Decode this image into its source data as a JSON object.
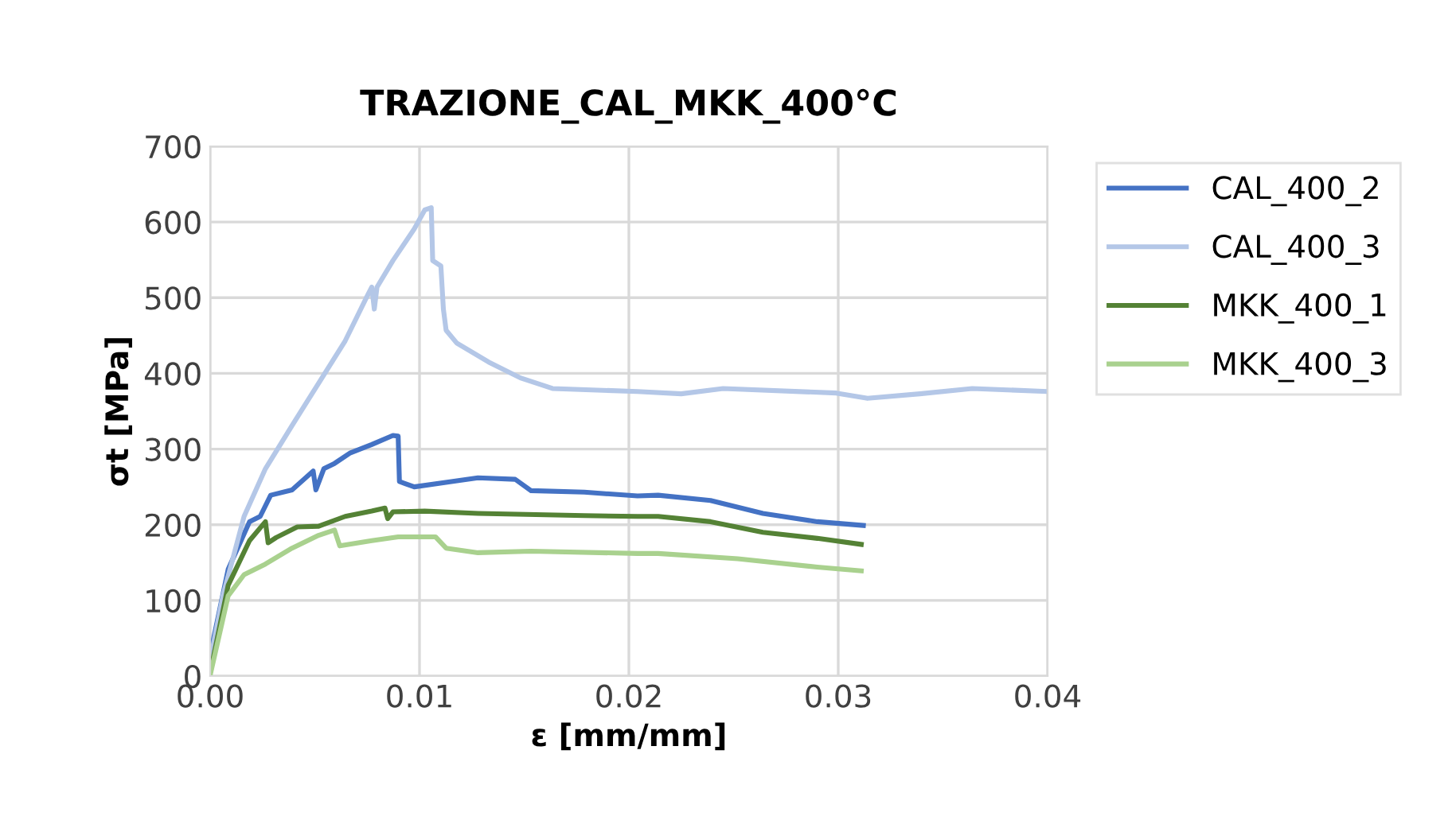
{
  "chart_data": {
    "type": "line",
    "title": "TRAZIONE_CAL_MKK_400°C",
    "xlabel": "ε [mm/mm]",
    "ylabel": "σt [MPa]",
    "xlim": [
      0,
      0.04
    ],
    "xticks": [
      {
        "value": 0,
        "label": "0.00"
      },
      {
        "value": 0.01,
        "label": "0.01"
      },
      {
        "value": 0.02,
        "label": "0.02"
      },
      {
        "value": 0.03,
        "label": "0.03"
      },
      {
        "value": 0.04,
        "label": "0.04"
      }
    ],
    "ylim": [
      0,
      700
    ],
    "yticks": [
      0,
      100,
      200,
      300,
      400,
      500,
      600,
      700
    ],
    "grid": true,
    "legend": "right",
    "marker": "none",
    "line_style": "solid",
    "series": [
      {
        "name": "CAL_400_2",
        "color": "#4472c4",
        "x": [
          0,
          0.00086,
          0.00188,
          0.00239,
          0.00289,
          0.00391,
          0.00492,
          0.00505,
          0.00543,
          0.00594,
          0.0067,
          0.00772,
          0.00873,
          0.00898,
          0.00904,
          0.00975,
          0.01152,
          0.01279,
          0.01457,
          0.01533,
          0.01787,
          0.02041,
          0.0214,
          0.0239,
          0.0264,
          0.029,
          0.0312
        ],
        "values": [
          28,
          141,
          204,
          211,
          239,
          246,
          271,
          246,
          274,
          281,
          295,
          306,
          318,
          317,
          257,
          250,
          257,
          262,
          260,
          245,
          243,
          238,
          239,
          232,
          215,
          204,
          199
        ]
      },
      {
        "name": "CAL_400_3",
        "color": "#b4c7e7",
        "x": [
          0,
          0.00061,
          0.00162,
          0.00264,
          0.00391,
          0.00518,
          0.00645,
          0.00746,
          0.00772,
          0.00784,
          0.00797,
          0.00873,
          0.00975,
          0.01025,
          0.01056,
          0.01063,
          0.01102,
          0.01114,
          0.01127,
          0.01178,
          0.0133,
          0.01482,
          0.01635,
          0.02041,
          0.0225,
          0.0245,
          0.0299,
          0.0314,
          0.0339,
          0.0364,
          0.04
        ],
        "values": [
          20,
          106,
          211,
          274,
          331,
          387,
          443,
          500,
          514,
          485,
          514,
          549,
          591,
          616,
          619,
          549,
          542,
          485,
          457,
          440,
          415,
          394,
          380,
          376,
          373,
          380,
          374,
          367,
          373,
          380,
          376
        ]
      },
      {
        "name": "MKK_400_1",
        "color": "#548235",
        "x": [
          0,
          0.00086,
          0.00188,
          0.00264,
          0.00277,
          0.00315,
          0.00416,
          0.00518,
          0.00645,
          0.00772,
          0.00835,
          0.00848,
          0.00873,
          0.01025,
          0.01279,
          0.01787,
          0.02041,
          0.0214,
          0.0239,
          0.0264,
          0.029,
          0.0311
        ],
        "values": [
          4,
          120,
          179,
          204,
          176,
          183,
          197,
          198,
          211,
          218,
          222,
          208,
          217,
          218,
          215,
          212,
          211,
          211,
          204,
          190,
          182,
          174
        ]
      },
      {
        "name": "MKK_400_3",
        "color": "#a9d18e",
        "x": [
          0,
          0.00086,
          0.00162,
          0.00264,
          0.00391,
          0.00518,
          0.00594,
          0.00619,
          0.00772,
          0.00898,
          0.01076,
          0.01127,
          0.01279,
          0.01533,
          0.02041,
          0.0214,
          0.0252,
          0.029,
          0.0311
        ],
        "values": [
          1,
          106,
          134,
          148,
          169,
          186,
          193,
          172,
          179,
          184,
          184,
          169,
          163,
          165,
          162,
          162,
          155,
          144,
          139
        ]
      }
    ]
  }
}
